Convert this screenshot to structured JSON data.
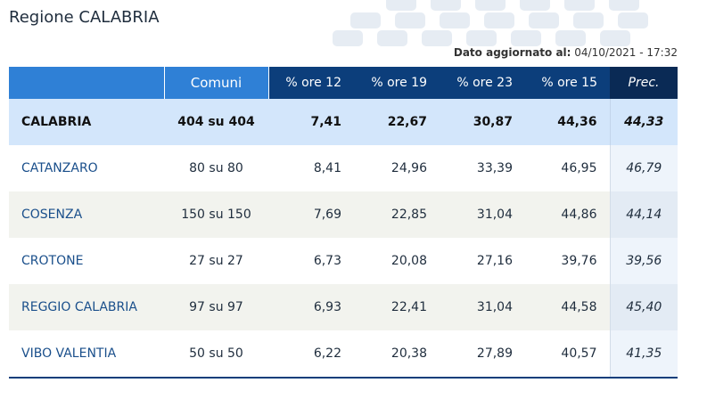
{
  "title": "Regione CALABRIA",
  "updated": {
    "label": "Dato aggiornato al:",
    "value": "04/10/2021 - 17:32"
  },
  "columns": {
    "comuni": "Comuni",
    "ore12": "% ore 12",
    "ore19": "% ore 19",
    "ore23": "% ore 23",
    "ore15": "% ore 15",
    "prec": "Prec."
  },
  "region": {
    "name": "CALABRIA",
    "comuni": "404 su 404",
    "ore12": "7,41",
    "ore19": "22,67",
    "ore23": "30,87",
    "ore15": "44,36",
    "prec": "44,33"
  },
  "rows": [
    {
      "name": "CATANZARO",
      "comuni": "80 su 80",
      "ore12": "8,41",
      "ore19": "24,96",
      "ore23": "33,39",
      "ore15": "46,95",
      "prec": "46,79"
    },
    {
      "name": "COSENZA",
      "comuni": "150 su 150",
      "ore12": "7,69",
      "ore19": "22,85",
      "ore23": "31,04",
      "ore15": "44,86",
      "prec": "44,14"
    },
    {
      "name": "CROTONE",
      "comuni": "27 su 27",
      "ore12": "6,73",
      "ore19": "20,08",
      "ore23": "27,16",
      "ore15": "39,76",
      "prec": "39,56"
    },
    {
      "name": "REGGIO CALABRIA",
      "comuni": "97 su 97",
      "ore12": "6,93",
      "ore19": "22,41",
      "ore23": "31,04",
      "ore15": "44,58",
      "prec": "45,40"
    },
    {
      "name": "VIBO VALENTIA",
      "comuni": "50 su 50",
      "ore12": "6,22",
      "ore19": "20,38",
      "ore23": "27,89",
      "ore15": "40,57",
      "prec": "41,35"
    }
  ]
}
